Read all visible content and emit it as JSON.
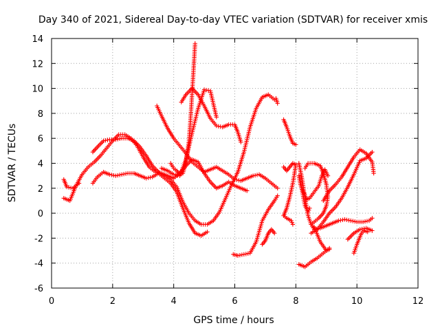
{
  "chart_data": {
    "type": "scatter",
    "title": "Day 340 of 2021, Sidereal Day-to-day VTEC variation (SDTVAR) for receiver xmis",
    "xlabel": "GPS time / hours",
    "ylabel": "SDTVAR / TECUs",
    "xlim": [
      0,
      12
    ],
    "ylim": [
      -6,
      14
    ],
    "xticks": [
      "0",
      "2",
      "4",
      "6",
      "8",
      "10",
      "12"
    ],
    "yticks": [
      "-6",
      "-4",
      "-2",
      "0",
      "2",
      "4",
      "6",
      "8",
      "10",
      "12",
      "14"
    ],
    "grid": true,
    "marker": "+",
    "color": "#ff0000",
    "series": [
      {
        "values": [
          [
            0.4,
            1.2
          ],
          [
            0.6,
            1.0
          ],
          [
            0.8,
            2.2
          ],
          [
            1.0,
            3.1
          ],
          [
            1.2,
            3.7
          ],
          [
            1.4,
            4.1
          ],
          [
            1.6,
            4.6
          ],
          [
            1.8,
            5.2
          ],
          [
            2.0,
            5.8
          ],
          [
            2.2,
            6.3
          ],
          [
            2.4,
            6.3
          ],
          [
            2.6,
            6.0
          ],
          [
            2.8,
            5.4
          ],
          [
            3.0,
            4.5
          ],
          [
            3.2,
            3.7
          ],
          [
            3.4,
            3.3
          ],
          [
            3.6,
            3.2
          ],
          [
            3.8,
            3.0
          ],
          [
            4.0,
            2.8
          ],
          [
            4.2,
            3.2
          ],
          [
            4.4,
            3.8
          ],
          [
            4.6,
            4.3
          ],
          [
            4.8,
            4.1
          ],
          [
            5.0,
            3.2
          ],
          [
            5.2,
            2.5
          ],
          [
            5.4,
            2.0
          ],
          [
            5.6,
            2.2
          ],
          [
            5.8,
            2.5
          ],
          [
            6.0,
            2.2
          ],
          [
            6.2,
            2.0
          ],
          [
            6.4,
            1.8
          ]
        ]
      },
      {
        "values": [
          [
            0.4,
            2.7
          ],
          [
            0.5,
            2.1
          ],
          [
            0.7,
            2.0
          ],
          [
            0.9,
            2.4
          ]
        ]
      },
      {
        "values": [
          [
            1.35,
            2.4
          ],
          [
            1.5,
            2.9
          ],
          [
            1.7,
            3.3
          ],
          [
            1.9,
            3.1
          ],
          [
            2.1,
            3.0
          ],
          [
            2.3,
            3.1
          ],
          [
            2.5,
            3.2
          ],
          [
            2.7,
            3.2
          ],
          [
            2.9,
            3.0
          ],
          [
            3.1,
            2.8
          ],
          [
            3.3,
            2.9
          ],
          [
            3.5,
            3.2
          ],
          [
            3.7,
            2.8
          ],
          [
            3.9,
            2.4
          ],
          [
            4.1,
            1.7
          ],
          [
            4.3,
            0.4
          ],
          [
            4.5,
            -0.8
          ],
          [
            4.7,
            -1.6
          ],
          [
            4.9,
            -1.8
          ],
          [
            5.1,
            -1.5
          ]
        ]
      },
      {
        "values": [
          [
            1.35,
            4.9
          ],
          [
            1.5,
            5.3
          ],
          [
            1.7,
            5.8
          ],
          [
            1.9,
            5.9
          ],
          [
            2.1,
            5.9
          ],
          [
            2.3,
            6.0
          ],
          [
            2.5,
            6.0
          ],
          [
            2.7,
            5.8
          ],
          [
            2.9,
            5.3
          ],
          [
            3.1,
            4.6
          ],
          [
            3.3,
            3.8
          ],
          [
            3.5,
            3.3
          ],
          [
            3.7,
            3.0
          ],
          [
            3.9,
            2.7
          ],
          [
            4.1,
            2.1
          ],
          [
            4.3,
            0.9
          ],
          [
            4.5,
            0.0
          ],
          [
            4.7,
            -0.6
          ],
          [
            4.9,
            -0.9
          ],
          [
            5.1,
            -0.9
          ],
          [
            5.3,
            -0.6
          ],
          [
            5.5,
            0.1
          ],
          [
            5.7,
            1.2
          ],
          [
            5.9,
            2.3
          ],
          [
            6.1,
            3.3
          ],
          [
            6.3,
            4.9
          ],
          [
            6.5,
            6.9
          ],
          [
            6.7,
            8.4
          ],
          [
            6.9,
            9.3
          ],
          [
            7.1,
            9.5
          ],
          [
            7.3,
            9.1
          ]
        ]
      },
      {
        "values": [
          [
            3.45,
            8.6
          ],
          [
            3.6,
            7.8
          ],
          [
            3.8,
            6.8
          ],
          [
            4.0,
            6.0
          ],
          [
            4.2,
            5.4
          ],
          [
            4.4,
            4.8
          ],
          [
            4.6,
            4.1
          ],
          [
            4.8,
            3.7
          ],
          [
            5.0,
            3.3
          ],
          [
            5.2,
            3.5
          ],
          [
            5.4,
            3.7
          ],
          [
            5.6,
            3.4
          ],
          [
            5.8,
            3.1
          ],
          [
            6.0,
            2.7
          ],
          [
            6.2,
            2.6
          ],
          [
            6.4,
            2.8
          ],
          [
            6.6,
            3.0
          ],
          [
            6.8,
            3.1
          ],
          [
            7.0,
            2.8
          ],
          [
            7.2,
            2.4
          ],
          [
            7.4,
            2.0
          ]
        ]
      },
      {
        "values": [
          [
            3.9,
            4.0
          ],
          [
            4.0,
            3.6
          ],
          [
            4.1,
            3.4
          ],
          [
            4.2,
            3.1
          ],
          [
            4.3,
            3.2
          ],
          [
            4.4,
            4.1
          ],
          [
            4.5,
            5.8
          ],
          [
            4.55,
            7.5
          ],
          [
            4.6,
            9.5
          ],
          [
            4.65,
            11.5
          ],
          [
            4.7,
            13.6
          ]
        ]
      },
      {
        "values": [
          [
            4.25,
            8.9
          ],
          [
            4.4,
            9.5
          ],
          [
            4.6,
            10.0
          ],
          [
            4.8,
            9.5
          ],
          [
            5.0,
            8.6
          ],
          [
            5.2,
            7.6
          ],
          [
            5.4,
            7.0
          ],
          [
            5.6,
            6.9
          ],
          [
            5.8,
            7.1
          ],
          [
            6.0,
            7.1
          ],
          [
            6.1,
            6.5
          ],
          [
            6.2,
            5.7
          ]
        ]
      },
      {
        "values": [
          [
            3.6,
            3.6
          ],
          [
            3.8,
            3.4
          ],
          [
            4.0,
            3.1
          ],
          [
            4.2,
            3.0
          ],
          [
            4.4,
            4.3
          ],
          [
            4.6,
            6.4
          ],
          [
            4.8,
            8.4
          ],
          [
            5.0,
            9.9
          ],
          [
            5.2,
            9.8
          ],
          [
            5.4,
            7.7
          ]
        ]
      },
      {
        "values": [
          [
            5.95,
            -3.3
          ],
          [
            6.1,
            -3.4
          ],
          [
            6.3,
            -3.3
          ],
          [
            6.5,
            -3.2
          ],
          [
            6.7,
            -2.3
          ],
          [
            6.9,
            -0.6
          ],
          [
            7.1,
            0.3
          ],
          [
            7.3,
            1.0
          ],
          [
            7.4,
            1.4
          ]
        ]
      },
      {
        "values": [
          [
            6.9,
            -2.5
          ],
          [
            7.0,
            -2.2
          ],
          [
            7.1,
            -1.6
          ],
          [
            7.2,
            -1.3
          ],
          [
            7.3,
            -1.6
          ]
        ]
      },
      {
        "values": [
          [
            7.35,
            9.2
          ],
          [
            7.4,
            8.8
          ]
        ]
      },
      {
        "values": [
          [
            7.6,
            7.5
          ],
          [
            7.7,
            6.9
          ],
          [
            7.8,
            6.2
          ],
          [
            7.9,
            5.6
          ],
          [
            8.0,
            5.5
          ]
        ]
      },
      {
        "values": [
          [
            7.6,
            3.7
          ],
          [
            7.7,
            3.4
          ],
          [
            7.8,
            3.7
          ],
          [
            7.9,
            4.0
          ],
          [
            8.0,
            3.9
          ],
          [
            7.95,
            3.1
          ],
          [
            7.9,
            2.4
          ],
          [
            7.8,
            1.3
          ],
          [
            7.7,
            0.4
          ],
          [
            7.6,
            -0.2
          ],
          [
            7.7,
            -0.4
          ],
          [
            7.85,
            -0.6
          ],
          [
            7.9,
            -0.9
          ]
        ]
      },
      {
        "values": [
          [
            8.1,
            4.0
          ],
          [
            8.2,
            2.8
          ],
          [
            8.3,
            1.2
          ],
          [
            8.4,
            -0.2
          ],
          [
            8.5,
            -0.9
          ],
          [
            8.6,
            -1.3
          ],
          [
            8.8,
            -1.2
          ],
          [
            9.0,
            -1.0
          ],
          [
            9.2,
            -0.8
          ],
          [
            9.4,
            -0.6
          ],
          [
            9.6,
            -0.5
          ],
          [
            9.8,
            -0.6
          ],
          [
            10.0,
            -0.7
          ],
          [
            10.2,
            -0.7
          ],
          [
            10.4,
            -0.6
          ],
          [
            10.5,
            -0.4
          ]
        ]
      },
      {
        "values": [
          [
            8.1,
            3.0
          ],
          [
            8.15,
            2.3
          ],
          [
            8.25,
            1.7
          ],
          [
            8.35,
            1.1
          ],
          [
            8.45,
            1.2
          ],
          [
            8.6,
            1.7
          ],
          [
            8.75,
            2.2
          ],
          [
            8.85,
            3.0
          ],
          [
            8.95,
            3.5
          ],
          [
            9.05,
            3.0
          ]
        ]
      },
      {
        "values": [
          [
            8.3,
            3.6
          ],
          [
            8.4,
            4.0
          ],
          [
            8.6,
            4.0
          ],
          [
            8.8,
            3.8
          ],
          [
            8.9,
            3.2
          ],
          [
            9.0,
            2.3
          ],
          [
            9.05,
            1.3
          ],
          [
            9.0,
            0.6
          ],
          [
            8.9,
            0.0
          ],
          [
            8.75,
            -0.4
          ],
          [
            8.6,
            -0.7
          ],
          [
            8.5,
            -0.9
          ]
        ]
      },
      {
        "values": [
          [
            8.2,
            1.9
          ],
          [
            8.25,
            1.2
          ],
          [
            8.3,
            0.6
          ],
          [
            8.4,
            0.1
          ],
          [
            8.45,
            0.4
          ]
        ]
      },
      {
        "values": [
          [
            8.1,
            -4.1
          ],
          [
            8.3,
            -4.3
          ],
          [
            8.5,
            -3.9
          ],
          [
            8.7,
            -3.6
          ],
          [
            8.9,
            -3.2
          ],
          [
            9.1,
            -2.8
          ]
        ]
      },
      {
        "values": [
          [
            8.6,
            -1.1
          ],
          [
            8.8,
            -2.3
          ],
          [
            9.0,
            -3.0
          ],
          [
            9.1,
            -2.9
          ]
        ]
      },
      {
        "values": [
          [
            8.5,
            -1.6
          ],
          [
            8.7,
            -1.3
          ],
          [
            8.9,
            -0.7
          ],
          [
            9.1,
            0.0
          ],
          [
            9.3,
            0.5
          ],
          [
            9.5,
            1.2
          ],
          [
            9.7,
            2.1
          ],
          [
            9.9,
            3.1
          ],
          [
            10.1,
            4.2
          ],
          [
            10.3,
            4.4
          ],
          [
            10.5,
            4.9
          ]
        ]
      },
      {
        "values": [
          [
            8.9,
            1.0
          ],
          [
            9.1,
            1.8
          ],
          [
            9.3,
            2.3
          ],
          [
            9.5,
            2.9
          ],
          [
            9.7,
            3.7
          ],
          [
            9.9,
            4.5
          ],
          [
            10.1,
            5.1
          ],
          [
            10.3,
            4.8
          ],
          [
            10.5,
            4.1
          ],
          [
            10.55,
            3.2
          ]
        ]
      },
      {
        "values": [
          [
            9.7,
            -2.1
          ],
          [
            9.9,
            -1.6
          ],
          [
            10.1,
            -1.3
          ],
          [
            10.3,
            -1.2
          ],
          [
            10.5,
            -1.4
          ]
        ]
      },
      {
        "values": [
          [
            9.9,
            -3.2
          ],
          [
            10.0,
            -2.5
          ],
          [
            10.15,
            -1.6
          ],
          [
            10.25,
            -1.4
          ],
          [
            10.35,
            -1.5
          ]
        ]
      }
    ]
  }
}
